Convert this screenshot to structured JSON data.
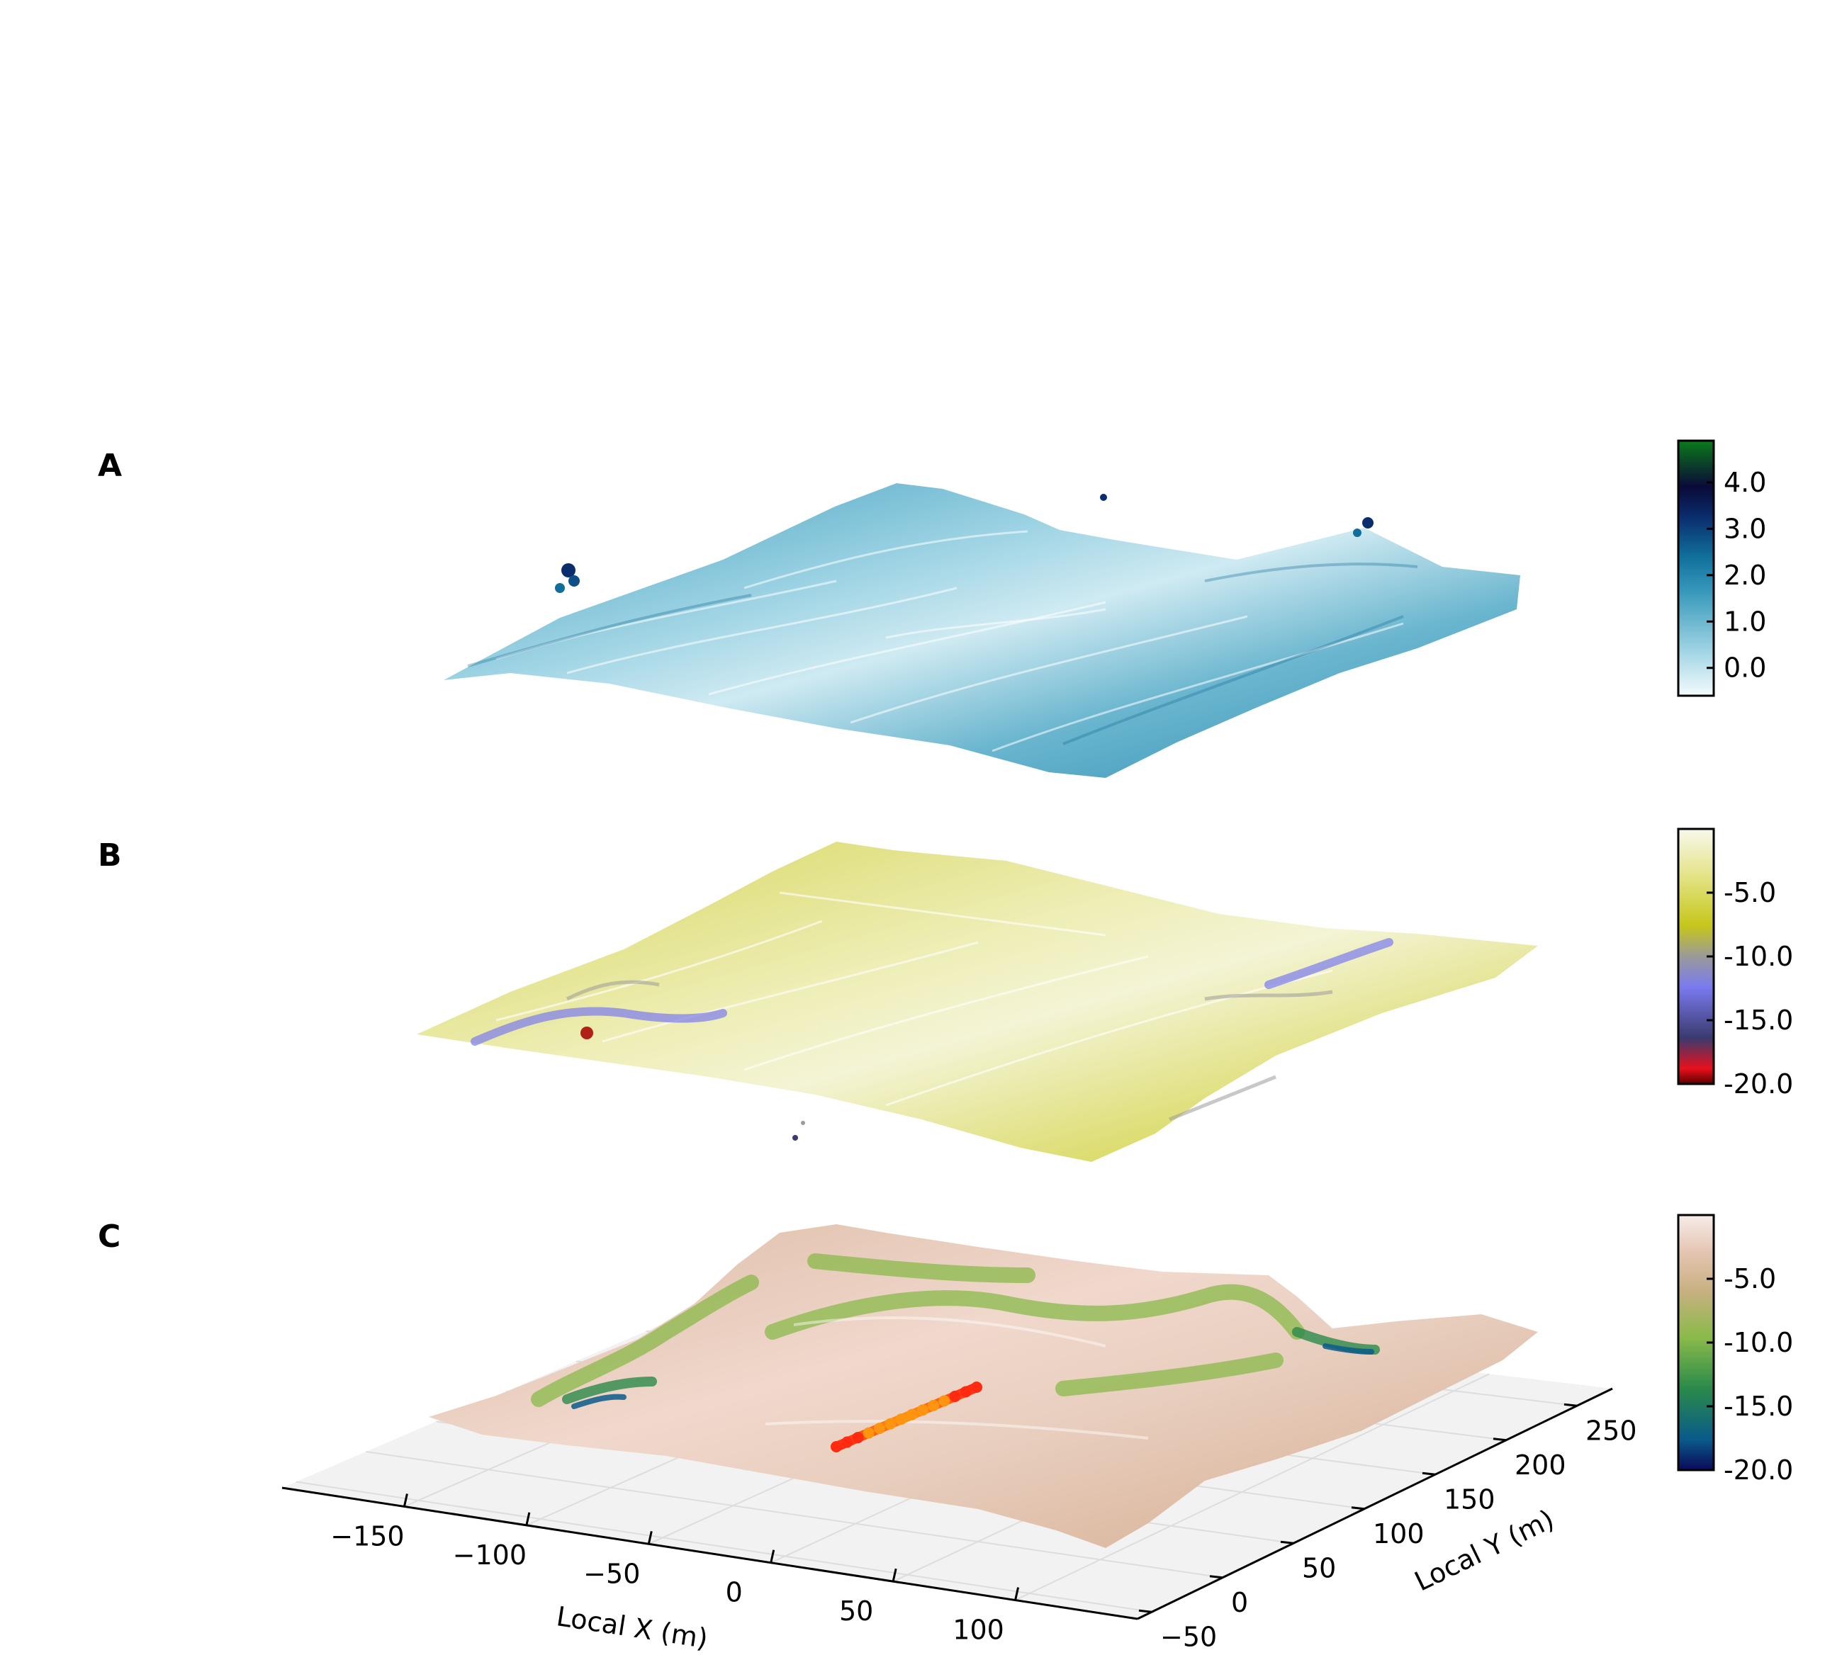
{
  "figure": {
    "panels": [
      {
        "letter": "A"
      },
      {
        "letter": "B"
      },
      {
        "letter": "C"
      }
    ]
  },
  "chart_data": [
    {
      "type": "surface-3d-scatter",
      "panel": "A",
      "colorbar": {
        "ticks": [
          "4.0",
          "3.0",
          "2.0",
          "1.0",
          "0.0"
        ],
        "tick_values": [
          4.0,
          3.0,
          2.0,
          1.0,
          0.0
        ],
        "range": [
          -0.6,
          4.9
        ],
        "colors": [
          {
            "at": 0.0,
            "color": "#f4fbfd"
          },
          {
            "at": 0.18,
            "color": "#9ed3e3"
          },
          {
            "at": 0.4,
            "color": "#3b9bbd"
          },
          {
            "at": 0.55,
            "color": "#0f6e9a"
          },
          {
            "at": 0.7,
            "color": "#0a2d6e"
          },
          {
            "at": 0.82,
            "color": "#0a0a38"
          },
          {
            "at": 1.0,
            "color": "#0a7a1a"
          }
        ]
      }
    },
    {
      "type": "surface-3d-scatter",
      "panel": "B",
      "colorbar": {
        "ticks": [
          "-5.0",
          "-10.0",
          "-15.0",
          "-20.0"
        ],
        "tick_values": [
          -5.0,
          -10.0,
          -15.0,
          -20.0
        ],
        "range": [
          -20.0,
          0.0
        ],
        "colors": [
          {
            "at": 0.0,
            "color": "#5a0000"
          },
          {
            "at": 0.06,
            "color": "#e8101c"
          },
          {
            "at": 0.18,
            "color": "#3a3a6e"
          },
          {
            "at": 0.38,
            "color": "#7a7af0"
          },
          {
            "at": 0.5,
            "color": "#9a9a9a"
          },
          {
            "at": 0.62,
            "color": "#c6c61a"
          },
          {
            "at": 0.82,
            "color": "#e4e48a"
          },
          {
            "at": 1.0,
            "color": "#f8f8ec"
          }
        ]
      }
    },
    {
      "type": "surface-3d-scatter",
      "panel": "C",
      "xlabel": "Local X (m)",
      "ylabel": "Local Y (m)",
      "x_ticks": [
        "−150",
        "−100",
        "−50",
        "0",
        "50",
        "100"
      ],
      "y_ticks": [
        "−50",
        "0",
        "50",
        "100",
        "150",
        "200",
        "250"
      ],
      "colorbar": {
        "ticks": [
          "-5.0",
          "-10.0",
          "-15.0",
          "-20.0"
        ],
        "tick_values": [
          -5.0,
          -10.0,
          -15.0,
          -20.0
        ],
        "range": [
          -20.0,
          0.0
        ],
        "colors": [
          {
            "at": 0.0,
            "color": "#0a0a5a"
          },
          {
            "at": 0.12,
            "color": "#0a5a8a"
          },
          {
            "at": 0.32,
            "color": "#2a8a4a"
          },
          {
            "at": 0.52,
            "color": "#8aba4a"
          },
          {
            "at": 0.7,
            "color": "#c8b080"
          },
          {
            "at": 0.86,
            "color": "#e6c6b4"
          },
          {
            "at": 1.0,
            "color": "#f6ece8"
          }
        ]
      },
      "track": {
        "colors": [
          "#ff2a10",
          "#ff9410"
        ]
      }
    }
  ]
}
